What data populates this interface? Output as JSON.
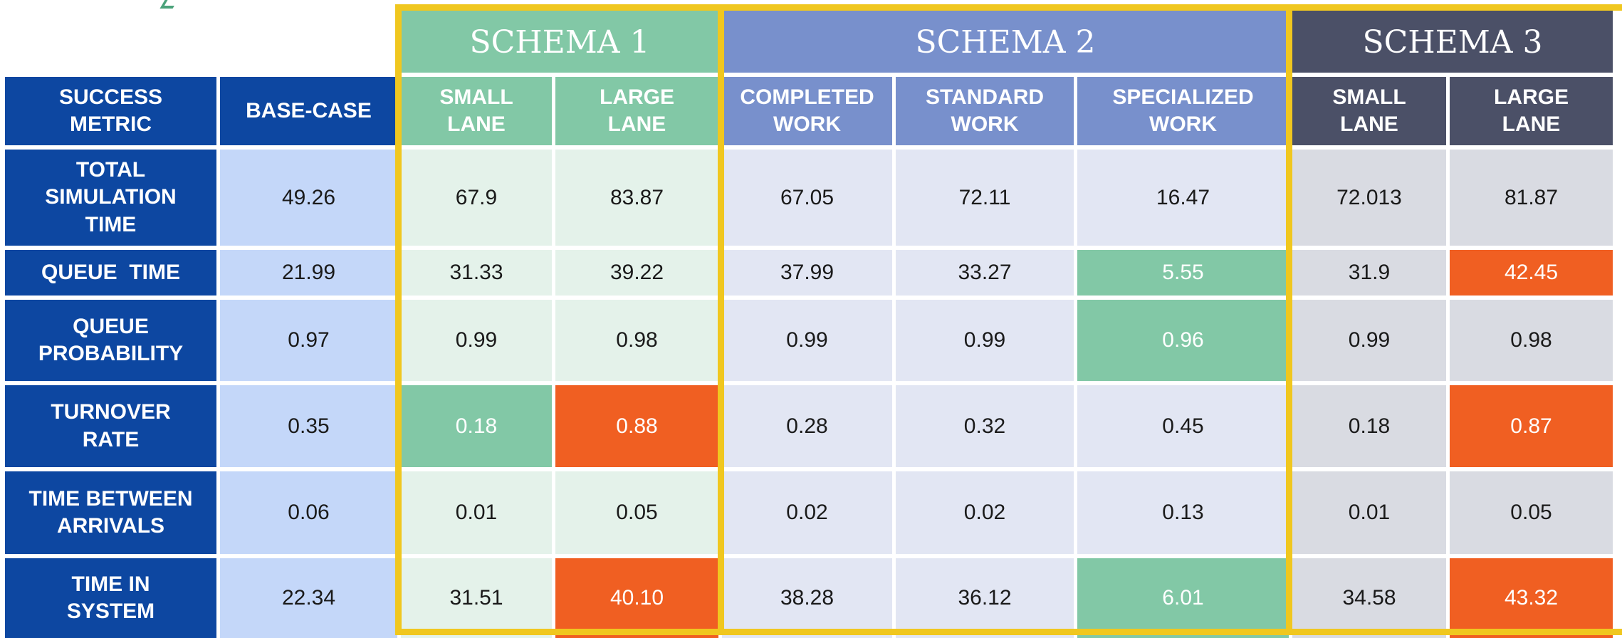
{
  "schemas": [
    {
      "title": "SCHEMA 1",
      "color": "#82c8a6"
    },
    {
      "title": "SCHEMA 2",
      "color": "#7890cc"
    },
    {
      "title": "SCHEMA 3",
      "color": "#4b5067"
    }
  ],
  "headers": {
    "metric": "SUCCESS METRIC",
    "base": "BASE-CASE",
    "s1_small": "SMALL LANE",
    "s1_large": "LARGE LANE",
    "s2_completed": "COMPLETED WORK",
    "s2_standard": "STANDARD WORK",
    "s2_specialized": "SPECIALIZED WORK",
    "s3_small": "SMALL LANE",
    "s3_large": "LARGE LANE"
  },
  "rows": [
    {
      "metric": "TOTAL SIMULATION TIME",
      "values": [
        "49.26",
        "67.9",
        "83.87",
        "67.05",
        "72.11",
        "16.47",
        "72.013",
        "81.87"
      ]
    },
    {
      "metric": "QUEUE  TIME",
      "values": [
        "21.99",
        "31.33",
        "39.22",
        "37.99",
        "33.27",
        "5.55",
        "31.9",
        "42.45"
      ]
    },
    {
      "metric": "QUEUE PROBABILITY",
      "values": [
        "0.97",
        "0.99",
        "0.98",
        "0.99",
        "0.99",
        "0.96",
        "0.99",
        "0.98"
      ]
    },
    {
      "metric": "TURNOVER RATE",
      "values": [
        "0.35",
        "0.18",
        "0.88",
        "0.28",
        "0.32",
        "0.45",
        "0.18",
        "0.87"
      ]
    },
    {
      "metric": "TIME BETWEEN ARRIVALS",
      "values": [
        "0.06",
        "0.01",
        "0.05",
        "0.02",
        "0.02",
        "0.13",
        "0.01",
        "0.05"
      ]
    },
    {
      "metric": "TIME IN SYSTEM",
      "values": [
        "22.34",
        "31.51",
        "40.10",
        "38.28",
        "36.12",
        "6.01",
        "34.58",
        "43.32"
      ]
    }
  ],
  "highlight_colors": {
    "best": "#82c8a6",
    "worst": "#f05f22",
    "outline": "#f0c71f"
  }
}
